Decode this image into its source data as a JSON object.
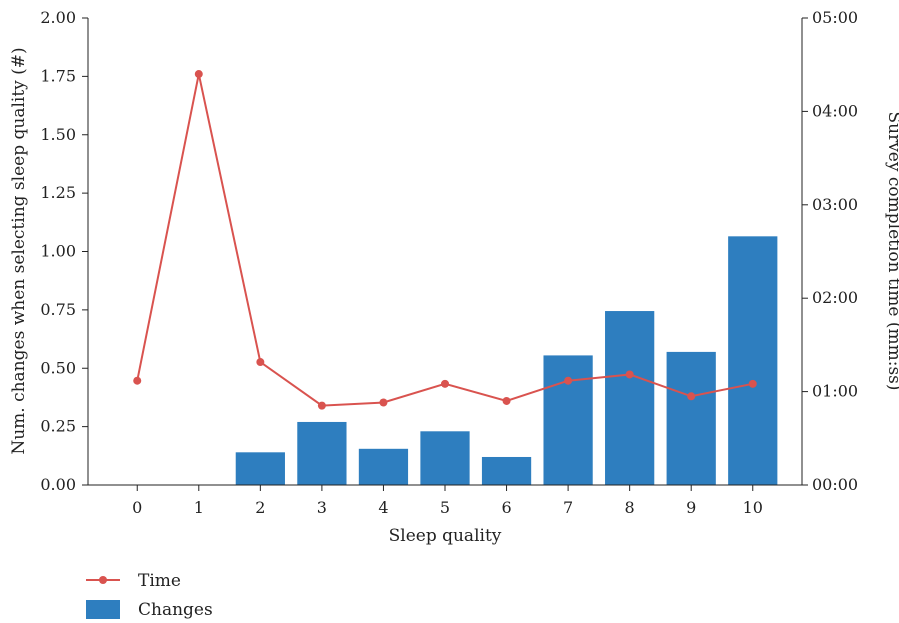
{
  "chart_data": {
    "type": "bar+line",
    "x": {
      "label": "Sleep quality",
      "categories": [
        "0",
        "1",
        "2",
        "3",
        "4",
        "5",
        "6",
        "7",
        "8",
        "9",
        "10"
      ]
    },
    "y_left": {
      "label": "Num. changes when selecting sleep quality (#)",
      "ylim": [
        0,
        2.0
      ],
      "ticks": [
        "0.00",
        "0.25",
        "0.50",
        "0.75",
        "1.00",
        "1.25",
        "1.50",
        "1.75",
        "2.00"
      ]
    },
    "y_right": {
      "label": "Survey completion time (mm:ss)",
      "ylim_seconds": [
        0,
        300
      ],
      "ticks": [
        "00:00",
        "01:00",
        "02:00",
        "03:00",
        "04:00",
        "05:00"
      ]
    },
    "series": [
      {
        "name": "Changes",
        "type": "bar",
        "axis": "left",
        "color": "#2e7ebf",
        "values": [
          0,
          0,
          0.14,
          0.27,
          0.155,
          0.23,
          0.12,
          0.555,
          0.745,
          0.57,
          1.065
        ]
      },
      {
        "name": "Time",
        "type": "line",
        "axis": "right",
        "color": "#d9534f",
        "values_seconds": [
          67,
          264,
          79,
          51,
          53,
          65,
          54,
          67,
          71,
          57,
          65
        ]
      }
    ],
    "legend": {
      "position": "bottom-left",
      "entries": [
        "Time",
        "Changes"
      ]
    },
    "grid": false
  }
}
